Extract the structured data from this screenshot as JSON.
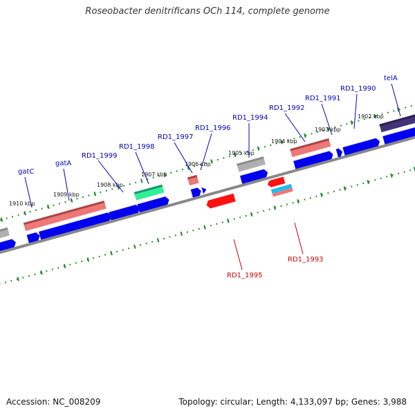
{
  "title": "Roseobacter denitrificans OCh 114, complete genome",
  "footer": {
    "accession": "Accession: NC_008209",
    "summary": "Topology: circular; Length: 4,133,097 bp; Genes: 3,988"
  },
  "colors": {
    "forward_label": "#0000bb",
    "reverse_label": "#cc0000",
    "backbone": "#888888",
    "ticks": "#228b22",
    "cds_blue": "#0000ee",
    "cds_red": "#ff1111",
    "rna_pink": "#ee7777",
    "gray": "#b0b0b0",
    "teal": "#33ee99",
    "cyan": "#22bbee",
    "dark_purple": "#443377"
  },
  "kbp_labels": [
    "1910 kbp",
    "1909 kbp",
    "1908 kbp",
    "1907 kbp",
    "1906 kbp",
    "1905 kbp",
    "1904 kbp",
    "1903 kbp",
    "1902 kbp"
  ],
  "forward_gene_labels": [
    "gatC",
    "gatA",
    "RD1_1999",
    "RD1_1998",
    "RD1_1997",
    "RD1_1996",
    "RD1_1994",
    "RD1_1992",
    "RD1_1991",
    "RD1_1990",
    "telA"
  ],
  "reverse_gene_labels": [
    "RD1_1995",
    "RD1_1993"
  ]
}
